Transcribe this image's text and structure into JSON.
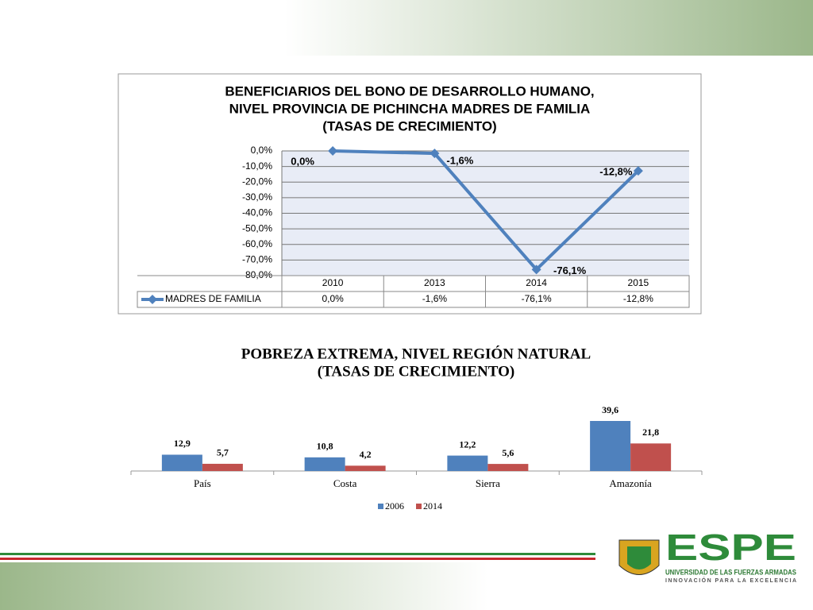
{
  "chart_data": [
    {
      "type": "line",
      "title": [
        "BENEFICIARIOS DEL BONO DE DESARROLLO HUMANO,",
        "NIVEL PROVINCIA DE PICHINCHA MADRES DE FAMILIA",
        "(TASAS DE CRECIMIENTO)"
      ],
      "categories": [
        "2010",
        "2013",
        "2014",
        "2015"
      ],
      "series": [
        {
          "name": "MADRES DE FAMILIA",
          "color": "#4f81bd",
          "values": [
            0,
            -1.6,
            -76.1,
            -12.8
          ],
          "value_labels": [
            "0,0%",
            "-1,6%",
            "-76,1%",
            "-12,8%"
          ]
        }
      ],
      "ylim": [
        -80,
        0
      ],
      "yticks": [
        {
          "value": 0,
          "label": "0,0%"
        },
        {
          "value": -10,
          "label": "-10,0%"
        },
        {
          "value": -20,
          "label": "-20,0%"
        },
        {
          "value": -30,
          "label": "-30,0%"
        },
        {
          "value": -40,
          "label": "-40,0%"
        },
        {
          "value": -50,
          "label": "-50,0%"
        },
        {
          "value": -60,
          "label": "-60,0%"
        },
        {
          "value": -70,
          "label": "-70,0%"
        },
        {
          "value": -80,
          "label": "-80,0%"
        }
      ],
      "grid": true
    },
    {
      "type": "bar",
      "title": [
        "POBREZA EXTREMA, NIVEL REGIÓN NATURAL",
        "(TASAS DE CRECIMIENTO)"
      ],
      "categories": [
        "País",
        "Costa",
        "Sierra",
        "Amazonía"
      ],
      "series": [
        {
          "name": "2006",
          "color": "#4f81bd",
          "values": [
            12.9,
            10.8,
            12.2,
            39.6
          ],
          "value_labels": [
            "12,9",
            "10,8",
            "12,2",
            "39,6"
          ]
        },
        {
          "name": "2014",
          "color": "#c0504d",
          "values": [
            5.7,
            4.2,
            5.6,
            21.8
          ],
          "value_labels": [
            "5,7",
            "4,2",
            "5,6",
            "21,8"
          ]
        }
      ],
      "legend": "bottom"
    }
  ],
  "logo": {
    "name": "ESPE",
    "line1": "UNIVERSIDAD DE LAS FUERZAS ARMADAS",
    "line2": "INNOVACIÓN PARA LA EXCELENCIA"
  }
}
